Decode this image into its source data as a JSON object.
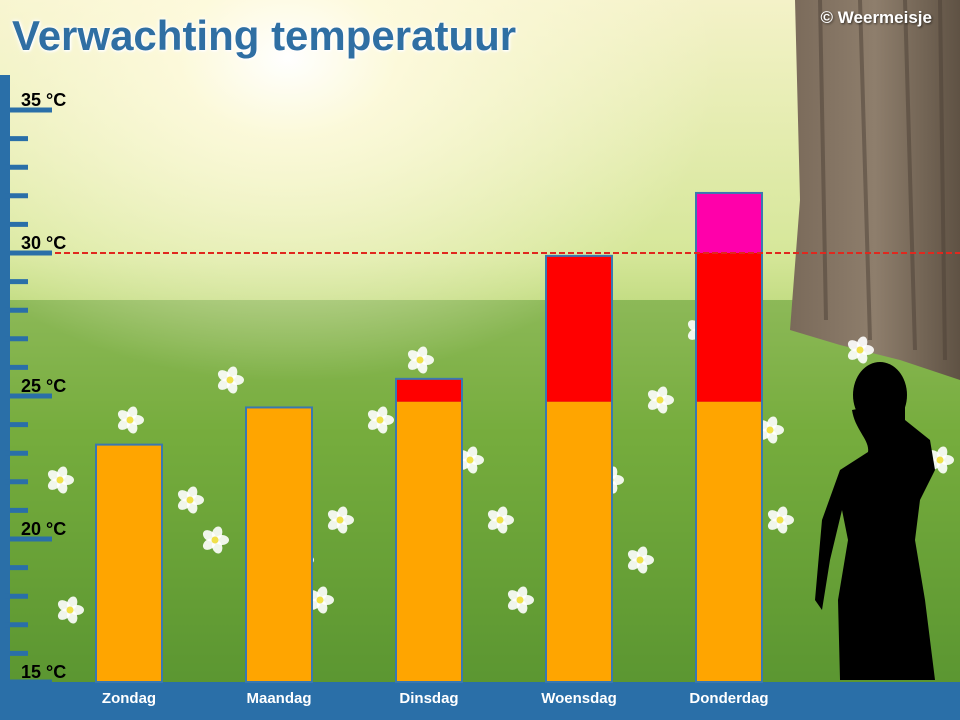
{
  "header": {
    "title": "Verwachting temperatuur",
    "copyright": "© Weermeisje"
  },
  "colors": {
    "axis": "#2a6fa8",
    "base": "#ffa500",
    "warm": "#ff0000",
    "hot": "#ff00aa",
    "threshold_line": "#e0281e",
    "bar_outline": "#3a78b0"
  },
  "decorations": {
    "background": "sunny-meadow-with-tree",
    "figure": "woman-silhouette"
  },
  "chart_data": {
    "type": "bar",
    "categories": [
      "Zondag",
      "Maandag",
      "Dinsdag",
      "Woensdag",
      "Donderdag"
    ],
    "values": [
      23.3,
      24.6,
      25.6,
      29.9,
      32.1
    ],
    "bands": [
      {
        "from": 15,
        "to": 24.8,
        "color_key": "base"
      },
      {
        "from": 24.8,
        "to": 30,
        "color_key": "warm"
      },
      {
        "from": 30,
        "to": 40,
        "color_key": "hot"
      }
    ],
    "ylim": [
      15,
      35
    ],
    "yticks": [
      {
        "value": 15,
        "label": "15 °C"
      },
      {
        "value": 20,
        "label": "20 °C"
      },
      {
        "value": 25,
        "label": "25 °C"
      },
      {
        "value": 30,
        "label": "30 °C"
      },
      {
        "value": 35,
        "label": "35 °C"
      }
    ],
    "minor_tick_step": 1,
    "threshold": 30
  }
}
